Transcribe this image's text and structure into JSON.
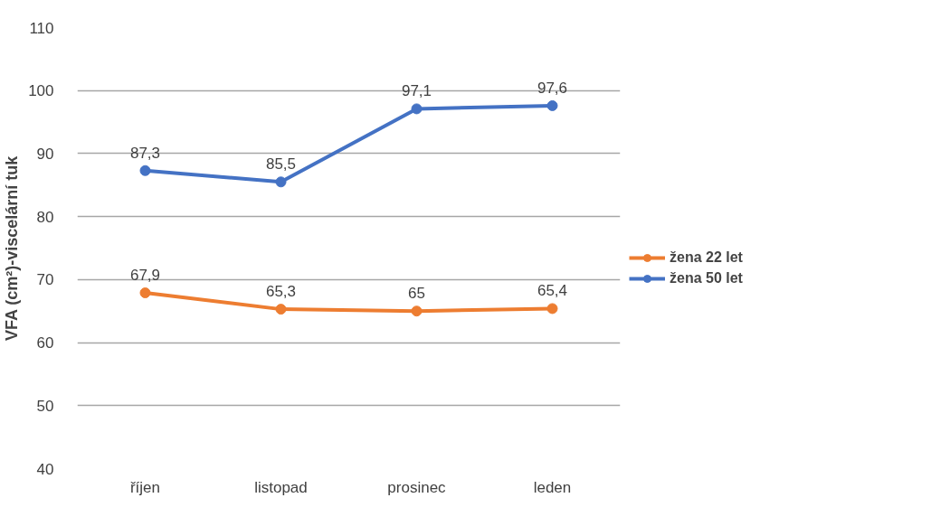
{
  "chart_data": {
    "type": "line",
    "ylabel": "VFA (cm²)-viscelární tuk",
    "categories": [
      "říjen",
      "listopad",
      "prosinec",
      "leden"
    ],
    "series": [
      {
        "name": "žena 22 let",
        "color": "#ed7d31",
        "values": [
          67.9,
          65.3,
          65,
          65.4
        ],
        "value_labels": [
          "67,9",
          "65,3",
          "65",
          "65,4"
        ]
      },
      {
        "name": "žena 50 let",
        "color": "#4472c4",
        "values": [
          87.3,
          85.5,
          97.1,
          97.6
        ],
        "value_labels": [
          "87,3",
          "85,5",
          "97,1",
          "97,6"
        ]
      }
    ],
    "ylim": [
      40,
      110
    ],
    "yticks": [
      40,
      50,
      60,
      70,
      80,
      90,
      100,
      110
    ],
    "grid": "y",
    "legend": "right",
    "marker": "circle",
    "line_style": "solid"
  }
}
